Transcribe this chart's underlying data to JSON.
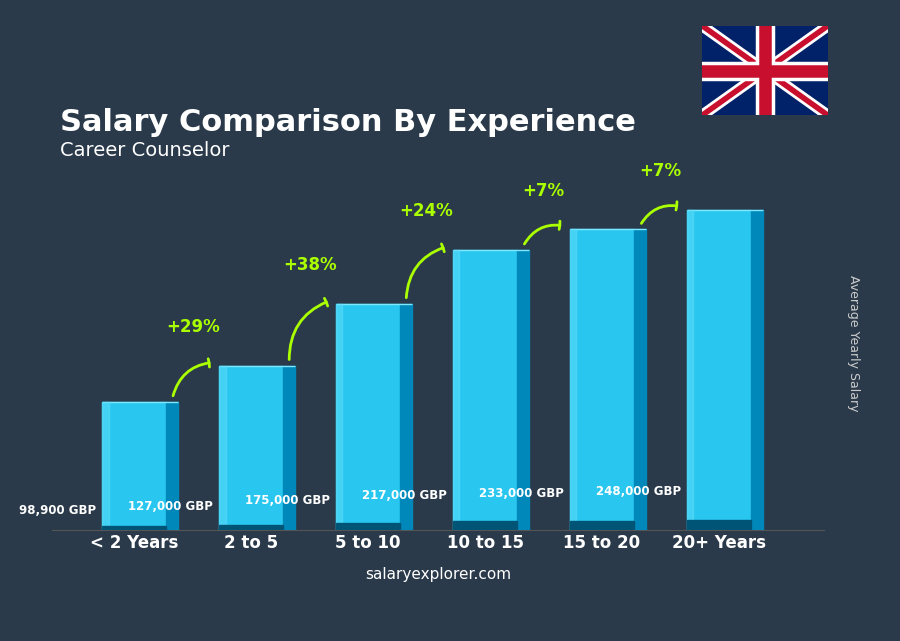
{
  "title": "Salary Comparison By Experience",
  "subtitle": "Career Counselor",
  "categories": [
    "< 2 Years",
    "2 to 5",
    "5 to 10",
    "10 to 15",
    "15 to 20",
    "20+ Years"
  ],
  "values": [
    98900,
    127000,
    175000,
    217000,
    233000,
    248000
  ],
  "value_labels": [
    "98,900 GBP",
    "127,000 GBP",
    "175,000 GBP",
    "217,000 GBP",
    "233,000 GBP",
    "248,000 GBP"
  ],
  "pct_labels": [
    "+29%",
    "+38%",
    "+24%",
    "+7%",
    "+7%"
  ],
  "bar_color_top": "#00d4ff",
  "bar_color_mid": "#00aadd",
  "bar_color_side": "#007bb5",
  "bar_color_dark": "#005580",
  "bg_color": "#1a1a2e",
  "title_color": "#ffffff",
  "subtitle_color": "#ffffff",
  "value_label_color": "#ffffff",
  "pct_color": "#aaff00",
  "ylabel": "Average Yearly Salary",
  "footer": "salaryexplorer.com",
  "ylim_max": 290000
}
